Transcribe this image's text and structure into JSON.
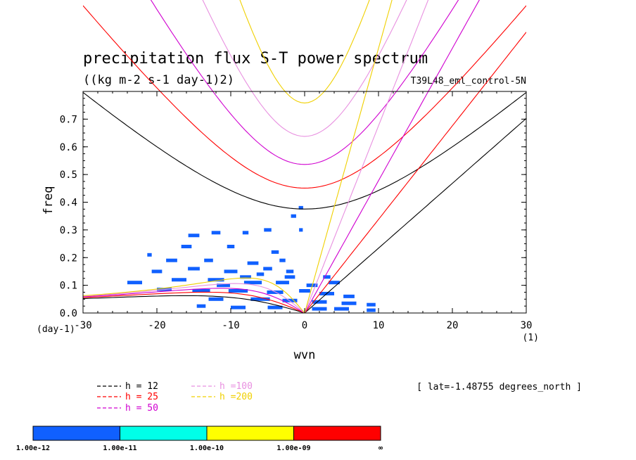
{
  "chart_data": {
    "type": "contour",
    "title": "precipitation flux S-T power spectrum",
    "units_label": "((kg m-2 s-1 day-1)2)",
    "dataset_label": "T39L48_eml_control-5N",
    "lat_label": "[ lat=-1.48755 degrees_north ]",
    "xlabel": "wvn",
    "ylabel": "freq",
    "x_unit": "(1)",
    "y_unit": "(day-1)",
    "xlim": [
      -30,
      30
    ],
    "ylim": [
      0,
      0.8
    ],
    "x_ticks": [
      -30,
      -20,
      -10,
      0,
      10,
      20,
      30
    ],
    "x_tick_labels": [
      "-30",
      "-20",
      "-10",
      "0",
      "10",
      "20",
      "30"
    ],
    "y_ticks": [
      0,
      0.1,
      0.2,
      0.3,
      0.4,
      0.5,
      0.6,
      0.7
    ],
    "y_tick_labels": [
      "0.0",
      "0.1",
      "0.2",
      "0.3",
      "0.4",
      "0.5",
      "0.6",
      "0.7"
    ],
    "dispersion_curves": [
      {
        "label": "h = 12",
        "h": 12,
        "color": "#000000"
      },
      {
        "label": "h = 25",
        "h": 25,
        "color": "#ff0000"
      },
      {
        "label": "h = 50",
        "h": 50,
        "color": "#d000d0"
      },
      {
        "label": "h =100",
        "h": 100,
        "color": "#e890e0"
      },
      {
        "label": "h =200",
        "h": 200,
        "color": "#f0d000"
      }
    ],
    "colorbar": {
      "colors": [
        "#1060ff",
        "#00ffe8",
        "#ffff00",
        "#ff0000"
      ],
      "labels": [
        "1.00e-12",
        "1.00e-11",
        "1.00e-10",
        "1.00e-09",
        "∞"
      ]
    },
    "power_patches": [
      [
        -15,
        0.28,
        1.5
      ],
      [
        -12,
        0.29,
        1.2
      ],
      [
        -8,
        0.29,
        0.8
      ],
      [
        -5,
        0.3,
        1
      ],
      [
        -1.5,
        0.35,
        0.7
      ],
      [
        -0.5,
        0.38,
        0.6
      ],
      [
        -0.5,
        0.3,
        0.5
      ],
      [
        -21,
        0.21,
        0.6
      ],
      [
        -16,
        0.24,
        1.4
      ],
      [
        -10,
        0.24,
        1
      ],
      [
        -4,
        0.22,
        1
      ],
      [
        -18,
        0.19,
        1.5
      ],
      [
        -13,
        0.19,
        1.2
      ],
      [
        -7,
        0.18,
        1.5
      ],
      [
        -3,
        0.19,
        0.8
      ],
      [
        -20,
        0.15,
        1.4
      ],
      [
        -15,
        0.16,
        1.6
      ],
      [
        -10,
        0.15,
        1.8
      ],
      [
        -5,
        0.16,
        1.2
      ],
      [
        -2,
        0.15,
        1
      ],
      [
        3,
        0.13,
        1
      ],
      [
        -23,
        0.11,
        2
      ],
      [
        -17,
        0.12,
        2
      ],
      [
        -12,
        0.12,
        2.2
      ],
      [
        -7,
        0.11,
        2.4
      ],
      [
        -3,
        0.11,
        1.8
      ],
      [
        1,
        0.1,
        1.5
      ],
      [
        4,
        0.11,
        1.5
      ],
      [
        -19,
        0.085,
        2
      ],
      [
        -14,
        0.08,
        2.4
      ],
      [
        -9,
        0.08,
        2.6
      ],
      [
        -4,
        0.075,
        2.2
      ],
      [
        0,
        0.08,
        1.5
      ],
      [
        3,
        0.07,
        2
      ],
      [
        6,
        0.06,
        1.5
      ],
      [
        -12,
        0.05,
        2
      ],
      [
        -6,
        0.05,
        2.6
      ],
      [
        -2,
        0.045,
        2
      ],
      [
        2,
        0.04,
        2
      ],
      [
        6,
        0.035,
        2
      ],
      [
        9,
        0.03,
        1.2
      ],
      [
        -14,
        0.025,
        1.2
      ],
      [
        -9,
        0.02,
        2
      ],
      [
        -4,
        0.02,
        2
      ],
      [
        2,
        0.015,
        2
      ],
      [
        5,
        0.015,
        2
      ],
      [
        9,
        0.01,
        1.2
      ],
      [
        -8,
        0.13,
        1.5
      ],
      [
        -11,
        0.1,
        1.8
      ],
      [
        -2,
        0.13,
        1.4
      ],
      [
        -6,
        0.14,
        1
      ]
    ]
  }
}
